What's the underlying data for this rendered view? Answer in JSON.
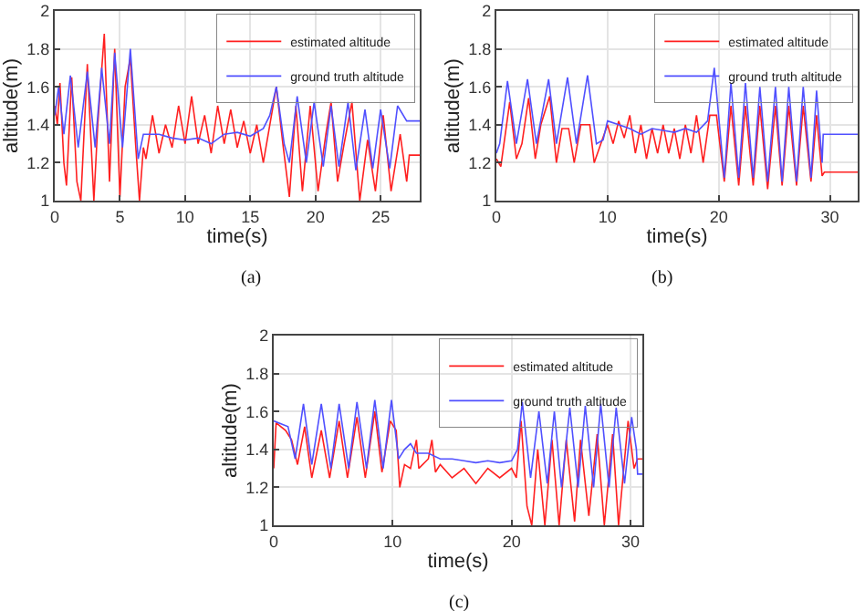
{
  "chart_data": [
    {
      "type": "line",
      "xlabel": "time(s)",
      "ylabel": "altitude(m)",
      "annotations": [
        "(a)"
      ],
      "xlim": [
        0,
        28
      ],
      "xticks": [
        0,
        5,
        10,
        15,
        20,
        25
      ],
      "ylim": [
        1,
        2
      ],
      "yticks": [
        1,
        1.2,
        1.4,
        1.6,
        1.8,
        2
      ],
      "grid": true,
      "legend": "top right",
      "marker": "none",
      "line_style": "solid",
      "series": [
        {
          "name": "estimated altitude",
          "color": "#ff2020",
          "x": [
            0,
            0.2,
            0.4,
            0.7,
            0.9,
            1.3,
            1.7,
            2,
            2.5,
            3,
            3.3,
            3.8,
            4.2,
            4.6,
            5,
            5.4,
            5.8,
            6.2,
            6.5,
            6.8,
            7,
            7.5,
            8,
            8.5,
            9,
            9.5,
            10,
            10.5,
            11,
            11.5,
            12,
            12.5,
            13,
            13.5,
            14,
            14.5,
            15,
            15.5,
            16,
            16.5,
            17,
            17.5,
            18,
            18.5,
            19,
            19.6,
            20.2,
            20.8,
            21.2,
            21.7,
            22.2,
            22.8,
            23.4,
            24,
            24.6,
            25.2,
            25.8,
            26.5,
            27,
            27.2,
            28
          ],
          "values": [
            1.5,
            1.4,
            1.62,
            1.2,
            1.08,
            1.65,
            1.1,
            1.0,
            1.72,
            1.0,
            1.4,
            1.88,
            1.1,
            1.8,
            1.02,
            1.6,
            1.75,
            1.3,
            1.0,
            1.28,
            1.22,
            1.45,
            1.25,
            1.4,
            1.28,
            1.5,
            1.3,
            1.55,
            1.3,
            1.45,
            1.25,
            1.5,
            1.3,
            1.48,
            1.28,
            1.42,
            1.25,
            1.4,
            1.2,
            1.4,
            1.6,
            1.3,
            1.02,
            1.5,
            1.05,
            1.5,
            1.05,
            1.35,
            1.52,
            1.1,
            1.3,
            1.52,
            1.0,
            1.32,
            1.05,
            1.45,
            1.05,
            1.35,
            1.1,
            1.24,
            1.24
          ]
        },
        {
          "name": "ground truth altitude",
          "color": "#5050ff",
          "x": [
            0,
            0.3,
            0.7,
            1.2,
            1.8,
            2.5,
            3.1,
            3.6,
            4.2,
            4.6,
            5.2,
            5.8,
            6.4,
            6.8,
            8,
            9,
            10,
            11,
            12,
            13,
            14,
            15,
            16,
            16.5,
            17,
            17.6,
            18,
            18.6,
            19.3,
            19.9,
            20.6,
            21.2,
            21.8,
            22.5,
            23.1,
            23.8,
            24.4,
            25,
            25.7,
            26.3,
            27,
            28
          ],
          "values": [
            1.45,
            1.6,
            1.35,
            1.66,
            1.28,
            1.68,
            1.28,
            1.7,
            1.3,
            1.78,
            1.28,
            1.8,
            1.22,
            1.35,
            1.35,
            1.33,
            1.32,
            1.33,
            1.3,
            1.35,
            1.36,
            1.34,
            1.38,
            1.45,
            1.6,
            1.3,
            1.2,
            1.55,
            1.2,
            1.52,
            1.18,
            1.5,
            1.18,
            1.52,
            1.16,
            1.48,
            1.17,
            1.48,
            1.17,
            1.5,
            1.42,
            1.42
          ]
        }
      ]
    },
    {
      "type": "line",
      "xlabel": "time(s)",
      "ylabel": "altitude(m)",
      "annotations": [
        "(b)"
      ],
      "xlim": [
        0,
        32.5
      ],
      "xticks": [
        0,
        10,
        20,
        30
      ],
      "ylim": [
        1,
        2
      ],
      "yticks": [
        1,
        1.2,
        1.4,
        1.6,
        1.8,
        2
      ],
      "grid": true,
      "legend": "top right",
      "marker": "none",
      "line_style": "solid",
      "series": [
        {
          "name": "estimated altitude",
          "color": "#ff2020",
          "x": [
            0,
            0.4,
            1.2,
            1.8,
            2.3,
            2.9,
            3.5,
            4,
            4.8,
            5.4,
            5.9,
            6.5,
            7,
            7.6,
            8.4,
            8.8,
            9.4,
            10,
            10.5,
            11,
            11.5,
            12,
            12.5,
            13,
            13.5,
            14,
            14.5,
            15,
            15.5,
            16,
            16.5,
            17,
            17.5,
            18,
            18.6,
            19.2,
            19.8,
            20.5,
            21.1,
            21.8,
            22.4,
            23.1,
            23.7,
            24.4,
            25.1,
            25.7,
            26.3,
            27,
            27.6,
            28.3,
            28.8,
            29.3,
            29.5,
            32.5
          ],
          "values": [
            1.22,
            1.18,
            1.52,
            1.22,
            1.3,
            1.54,
            1.22,
            1.4,
            1.55,
            1.2,
            1.38,
            1.38,
            1.2,
            1.4,
            1.4,
            1.2,
            1.3,
            1.4,
            1.3,
            1.42,
            1.33,
            1.45,
            1.25,
            1.4,
            1.22,
            1.38,
            1.25,
            1.4,
            1.25,
            1.38,
            1.22,
            1.4,
            1.25,
            1.45,
            1.2,
            1.45,
            1.45,
            1.1,
            1.5,
            1.08,
            1.5,
            1.08,
            1.5,
            1.06,
            1.5,
            1.08,
            1.5,
            1.08,
            1.5,
            1.1,
            1.45,
            1.13,
            1.15,
            1.15
          ]
        },
        {
          "name": "ground truth altitude",
          "color": "#5050ff",
          "x": [
            0,
            0.3,
            1,
            1.8,
            2.8,
            3.6,
            4.7,
            5.4,
            6.4,
            7.2,
            8.2,
            9,
            9.6,
            10,
            11,
            12,
            13,
            14,
            15,
            16,
            17,
            18,
            19,
            19.6,
            20.5,
            21.1,
            21.8,
            22.4,
            23.1,
            23.7,
            24.4,
            25.1,
            25.7,
            26.3,
            27,
            27.6,
            28.3,
            28.8,
            29.3,
            29.4,
            32.5
          ],
          "values": [
            1.25,
            1.3,
            1.63,
            1.3,
            1.64,
            1.3,
            1.64,
            1.3,
            1.65,
            1.3,
            1.66,
            1.3,
            1.32,
            1.42,
            1.4,
            1.38,
            1.35,
            1.38,
            1.37,
            1.36,
            1.38,
            1.36,
            1.42,
            1.7,
            1.12,
            1.62,
            1.12,
            1.62,
            1.12,
            1.6,
            1.1,
            1.6,
            1.1,
            1.6,
            1.1,
            1.6,
            1.12,
            1.58,
            1.2,
            1.35,
            1.35
          ]
        }
      ]
    },
    {
      "type": "line",
      "xlabel": "time(s)",
      "ylabel": "altitude(m)",
      "annotations": [
        "(c)"
      ],
      "xlim": [
        0,
        31
      ],
      "xticks": [
        0,
        10,
        20,
        30
      ],
      "ylim": [
        1,
        2
      ],
      "yticks": [
        1,
        1.2,
        1.4,
        1.6,
        1.8,
        2
      ],
      "grid": true,
      "legend": "top right",
      "marker": "none",
      "line_style": "solid",
      "series": [
        {
          "name": "estimated altitude",
          "color": "#ff2020",
          "x": [
            0,
            0.2,
            1,
            1.5,
            2,
            2.6,
            3.2,
            4,
            4.7,
            5.5,
            6.2,
            7,
            7.7,
            8.5,
            9.1,
            9.8,
            10.3,
            10.6,
            11,
            11.5,
            12,
            12.2,
            13,
            13.3,
            13.6,
            14,
            15,
            16,
            17,
            18,
            19,
            20,
            20.4,
            20.8,
            21.3,
            21.7,
            22.2,
            22.8,
            23.4,
            24,
            24.6,
            25.3,
            25.8,
            26.5,
            27.2,
            27.8,
            28.5,
            29,
            29.8,
            30.3,
            30.6,
            31
          ],
          "values": [
            1.3,
            1.54,
            1.5,
            1.45,
            1.32,
            1.52,
            1.25,
            1.5,
            1.25,
            1.55,
            1.25,
            1.57,
            1.25,
            1.6,
            1.28,
            1.55,
            1.5,
            1.2,
            1.32,
            1.3,
            1.45,
            1.3,
            1.35,
            1.45,
            1.28,
            1.32,
            1.25,
            1.3,
            1.22,
            1.3,
            1.25,
            1.3,
            1.25,
            1.55,
            1.1,
            1.0,
            1.4,
            1.0,
            1.45,
            1.0,
            1.45,
            1.02,
            1.45,
            1.05,
            1.48,
            1.0,
            1.48,
            1.0,
            1.55,
            1.3,
            1.35,
            1.35
          ]
        },
        {
          "name": "ground truth altitude",
          "color": "#5050ff",
          "x": [
            0,
            1.2,
            1.8,
            2.5,
            3.2,
            4,
            4.8,
            5.5,
            6.3,
            7,
            7.8,
            8.5,
            9.2,
            9.9,
            10.5,
            11,
            11.5,
            12,
            13,
            14,
            15,
            16,
            17,
            18,
            19,
            20,
            20.5,
            20.9,
            21.6,
            22.3,
            23,
            23.6,
            24.2,
            24.9,
            25.6,
            26.2,
            26.9,
            27.5,
            28.2,
            28.8,
            29.5,
            30.1,
            30.5,
            30.6,
            31
          ],
          "values": [
            1.55,
            1.52,
            1.35,
            1.64,
            1.32,
            1.64,
            1.3,
            1.64,
            1.3,
            1.65,
            1.3,
            1.66,
            1.3,
            1.66,
            1.35,
            1.4,
            1.43,
            1.38,
            1.38,
            1.35,
            1.35,
            1.34,
            1.33,
            1.34,
            1.33,
            1.34,
            1.4,
            1.65,
            1.25,
            1.6,
            1.22,
            1.6,
            1.2,
            1.62,
            1.2,
            1.63,
            1.2,
            1.64,
            1.2,
            1.62,
            1.22,
            1.57,
            1.4,
            1.27,
            1.27
          ]
        }
      ]
    }
  ]
}
